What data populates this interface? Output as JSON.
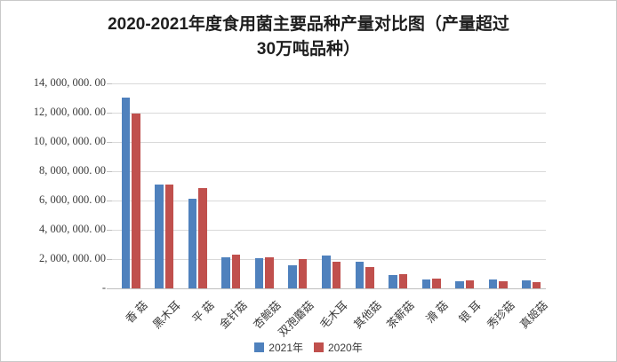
{
  "title": "2020-2021年度食用菌主要品种产量对比图（产量超过30万吨品种）",
  "colors": {
    "series_2021": "#4F81BD",
    "series_2020": "#C0504D",
    "gridline": "#D9D9D9",
    "axis_line": "#BFBFBF",
    "border": "#C9C9C9",
    "text": "#3A3A3A",
    "title_text": "#1F1F1F"
  },
  "chart_data": {
    "type": "bar",
    "title": "2020-2021年度食用菌主要品种产量对比图（产量超过30万吨品种）",
    "categories": [
      "香 菇",
      "黑木耳",
      "平 菇",
      "金针菇",
      "杏鲍菇",
      "双孢蘑菇",
      "毛木耳",
      "其他菇",
      "茶薪菇",
      "滑 菇",
      "银 耳",
      "秀珍菇",
      "真姬菇"
    ],
    "series": [
      {
        "name": "2021年",
        "color": "#4F81BD",
        "values": [
          13050000,
          7080000,
          6100000,
          2140000,
          2060000,
          1570000,
          2230000,
          1810000,
          930000,
          630000,
          490000,
          630000,
          570000
        ]
      },
      {
        "name": "2020年",
        "color": "#C0504D",
        "values": [
          11930000,
          7070000,
          6860000,
          2290000,
          2100000,
          2000000,
          1810000,
          1460000,
          970000,
          670000,
          550000,
          490000,
          450000
        ]
      }
    ],
    "xlabel": "",
    "ylabel": "",
    "ylim": [
      0,
      14000000
    ],
    "y_tick_interval": 2000000,
    "y_tick_labels": [
      "14, 000, 000. 00",
      "12, 000, 000. 00",
      "10, 000, 000. 00",
      "8, 000, 000. 00",
      "6, 000, 000. 00",
      "4, 000, 000. 00",
      "2, 000, 000. 00",
      "-"
    ],
    "grid": true,
    "legend_position": "bottom"
  }
}
